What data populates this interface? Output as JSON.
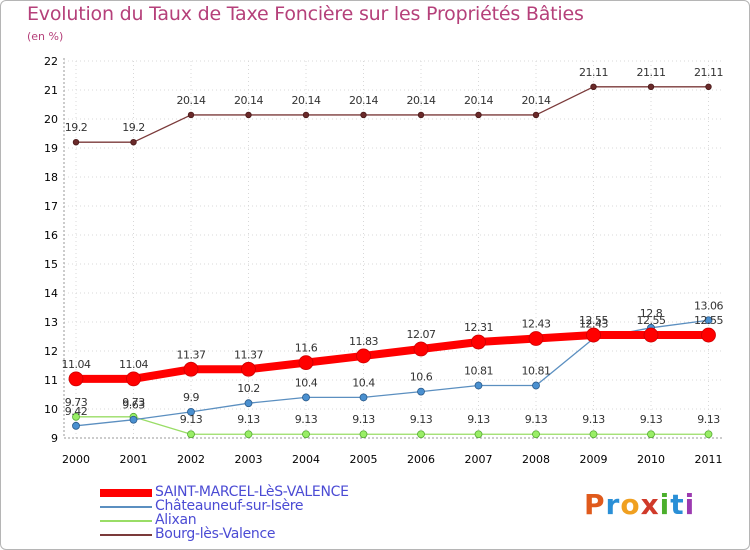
{
  "title": "Evolution du Taux de Taxe Foncière sur les Propriétés Bâties",
  "subtitle": "(en %)",
  "logo": {
    "text": "Proxiti",
    "letters": [
      {
        "ch": "P",
        "color": "#e05a1c"
      },
      {
        "ch": "r",
        "color": "#2a8fd6"
      },
      {
        "ch": "o",
        "color": "#f0a020"
      },
      {
        "ch": "x",
        "color": "#d03a2a"
      },
      {
        "ch": "i",
        "color": "#4caf2c"
      },
      {
        "ch": "t",
        "color": "#2a8fd6"
      },
      {
        "ch": "i",
        "color": "#9c3ab0"
      }
    ]
  },
  "chart_data": {
    "type": "line",
    "title": "Evolution du Taux de Taxe Foncière sur les Propriétés Bâties",
    "ylabel": "(en %)",
    "ylim": [
      9,
      22
    ],
    "yticks": [
      9,
      10,
      11,
      12,
      13,
      14,
      15,
      16,
      17,
      18,
      19,
      20,
      21,
      22
    ],
    "x": [
      "2000",
      "2001",
      "2002",
      "2003",
      "2004",
      "2005",
      "2006",
      "2007",
      "2008",
      "2009",
      "2010",
      "2011"
    ],
    "legend_position": "bottom-left",
    "series": [
      {
        "name": "SAINT-MARCEL-LèS-VALENCE",
        "color": "#ff0000",
        "values": [
          11.04,
          11.04,
          11.37,
          11.37,
          11.6,
          11.83,
          12.07,
          12.31,
          12.43,
          12.55,
          12.55,
          12.55
        ],
        "labels": [
          "11.04",
          "11.04",
          "11.37",
          "11.37",
          "11.6",
          "11.83",
          "12.07",
          "12.31",
          "12.43",
          "12.55",
          "12.55",
          "12.55"
        ]
      },
      {
        "name": "Châteauneuf-sur-Isère",
        "color": "#5b8fc0",
        "values": [
          9.42,
          9.63,
          9.9,
          10.2,
          10.4,
          10.4,
          10.6,
          10.81,
          10.81,
          12.43,
          12.8,
          13.06
        ],
        "labels": [
          "9.42",
          "9.63",
          "9.9",
          "10.2",
          "10.4",
          "10.4",
          "10.6",
          "10.81",
          "10.81",
          "12.43",
          "12.8",
          "13.06"
        ]
      },
      {
        "name": "Alixan",
        "color": "#99dd66",
        "values": [
          9.73,
          9.73,
          9.13,
          9.13,
          9.13,
          9.13,
          9.13,
          9.13,
          9.13,
          9.13,
          9.13,
          9.13
        ],
        "labels": [
          "9.73",
          "9.73",
          "9.13",
          "9.13",
          "9.13",
          "9.13",
          "9.13",
          "9.13",
          "9.13",
          "9.13",
          "9.13",
          "9.13"
        ]
      },
      {
        "name": "Bourg-lès-Valence",
        "color": "#7b3a3a",
        "values": [
          19.2,
          19.2,
          20.14,
          20.14,
          20.14,
          20.14,
          20.14,
          20.14,
          20.14,
          21.11,
          21.11,
          21.11
        ],
        "labels": [
          "19.2",
          "19.2",
          "20.14",
          "20.14",
          "20.14",
          "20.14",
          "20.14",
          "20.14",
          "20.14",
          "21.11",
          "21.11",
          "21.11"
        ]
      }
    ]
  }
}
